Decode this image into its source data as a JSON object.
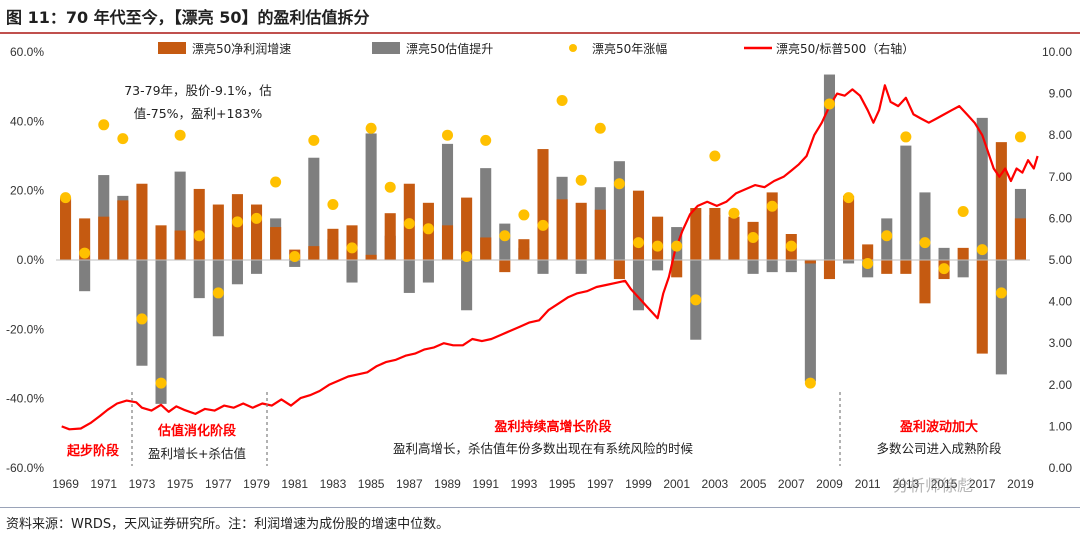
{
  "title": "图 11：70 年代至今，【漂亮 50】的盈利估值拆分",
  "source": "资料来源：WRDS，天风证券研究所。注：利润增速为成份股的增速中位数。",
  "watermark": "分析师徐彪",
  "colors": {
    "earnings": "#c55a11",
    "valuation": "#7f7f7f",
    "return_dot": "#ffc000",
    "ratio_line": "#ff0000",
    "annotation_red": "#ff0000",
    "title_rule": "#c0504d"
  },
  "annotations": {
    "note_1973_1979_l1": "73-79年，股价-9.1%，估",
    "note_1973_1979_l2": "值-75%，盈利+183%",
    "phase1_name": "起步阶段",
    "phase2_name": "估值消化阶段",
    "phase2_desc": "盈利增长+杀估值",
    "phase3_name": "盈利持续高增长阶段",
    "phase3_desc": "盈利高增长，杀估值年份多数出现在有系统风险的时候",
    "phase4_name": "盈利波动加大",
    "phase4_desc": "多数公司进入成熟阶段"
  },
  "chart_data": {
    "type": "bar",
    "title": "",
    "x_tick_labels": [
      "1969",
      "1971",
      "1973",
      "1975",
      "1977",
      "1979",
      "1981",
      "1983",
      "1985",
      "1987",
      "1989",
      "1991",
      "1993",
      "1995",
      "1997",
      "1999",
      "2001",
      "2003",
      "2005",
      "2007",
      "2009",
      "2011",
      "2013",
      "2015",
      "2017",
      "2019"
    ],
    "y_left": {
      "min": -0.6,
      "max": 0.6,
      "step": 0.2,
      "tick_labels": [
        "60.0%",
        "40.0%",
        "20.0%",
        "0.0%",
        "-20.0%",
        "-40.0%",
        "-60.0%"
      ]
    },
    "y_right": {
      "min": 0,
      "max": 10,
      "step": 1,
      "tick_labels": [
        "10.00",
        "9.00",
        "8.00",
        "7.00",
        "6.00",
        "5.00",
        "4.00",
        "3.00",
        "2.00",
        "1.00",
        "0.00"
      ]
    },
    "legend": {
      "placement": "top",
      "items": [
        "漂亮50净利润增速",
        "漂亮50估值提升",
        "漂亮50年涨幅",
        "漂亮50/标普500（右轴）"
      ]
    },
    "years": [
      1969,
      1970,
      1971,
      1972,
      1973,
      1974,
      1975,
      1976,
      1977,
      1978,
      1979,
      1980,
      1981,
      1982,
      1983,
      1984,
      1985,
      1986,
      1987,
      1988,
      1989,
      1990,
      1991,
      1992,
      1993,
      1994,
      1995,
      1996,
      1997,
      1998,
      1999,
      2000,
      2001,
      2002,
      2003,
      2004,
      2005,
      2006,
      2007,
      2008,
      2009,
      2010,
      2011,
      2012,
      2013,
      2014,
      2015,
      2016,
      2017,
      2018,
      2019
    ],
    "series": [
      {
        "name": "漂亮50净利润增速",
        "axis": "left",
        "values": [
          0.18,
          0.12,
          0.125,
          0.172,
          0.22,
          0.1,
          0.085,
          0.205,
          0.16,
          0.19,
          0.16,
          0.095,
          0.03,
          0.04,
          0.09,
          0.1,
          0.015,
          0.135,
          0.22,
          0.165,
          0.1,
          0.18,
          0.065,
          -0.035,
          0.06,
          0.32,
          0.175,
          0.165,
          0.145,
          -0.055,
          0.2,
          0.125,
          -0.05,
          0.15,
          0.15,
          0.125,
          0.11,
          0.195,
          0.075,
          -0.01,
          -0.055,
          0.185,
          0.045,
          -0.04,
          -0.04,
          -0.125,
          -0.055,
          0.035,
          -0.27,
          0.34,
          0.12
        ]
      },
      {
        "name": "漂亮50估值提升",
        "axis": "left",
        "values": [
          0,
          -0.09,
          0.245,
          0.185,
          -0.305,
          -0.415,
          0.255,
          -0.11,
          -0.22,
          -0.07,
          -0.04,
          0.12,
          -0.02,
          0.295,
          0.06,
          -0.065,
          0.365,
          0.07,
          -0.095,
          -0.065,
          0.335,
          -0.145,
          0.265,
          0.105,
          0.035,
          -0.04,
          0.24,
          -0.04,
          0.21,
          0.285,
          -0.145,
          -0.03,
          0.095,
          -0.23,
          0.13,
          0.03,
          -0.04,
          -0.035,
          -0.035,
          -0.35,
          0.535,
          -0.01,
          -0.05,
          0.12,
          0.33,
          0.195,
          0.035,
          -0.05,
          0.41,
          -0.33,
          0.205
        ]
      },
      {
        "name": "漂亮50年涨幅",
        "axis": "left",
        "values": [
          0.18,
          0.02,
          0.39,
          0.35,
          -0.17,
          -0.355,
          0.36,
          0.07,
          -0.095,
          0.11,
          0.12,
          0.225,
          0.01,
          0.345,
          0.16,
          0.035,
          0.38,
          0.21,
          0.105,
          0.09,
          0.36,
          0.01,
          0.345,
          0.07,
          0.13,
          0.1,
          0.46,
          0.23,
          0.38,
          0.22,
          0.05,
          0.04,
          0.04,
          -0.115,
          0.3,
          0.135,
          0.065,
          0.155,
          0.04,
          -0.355,
          0.45,
          0.18,
          -0.01,
          0.07,
          0.355,
          0.05,
          -0.025,
          0.14,
          0.03,
          -0.095,
          0.355
        ]
      },
      {
        "name": "漂亮50/标普500（右轴）",
        "axis": "right",
        "type": "line",
        "points": [
          [
            1968.8,
            1.0
          ],
          [
            1969.2,
            0.93
          ],
          [
            1969.8,
            0.95
          ],
          [
            1970.3,
            1.08
          ],
          [
            1970.8,
            1.25
          ],
          [
            1971.2,
            1.4
          ],
          [
            1971.7,
            1.55
          ],
          [
            1972.2,
            1.62
          ],
          [
            1972.7,
            1.58
          ],
          [
            1973.0,
            1.45
          ],
          [
            1973.5,
            1.38
          ],
          [
            1974.0,
            1.52
          ],
          [
            1974.4,
            1.35
          ],
          [
            1974.8,
            1.48
          ],
          [
            1975.2,
            1.4
          ],
          [
            1975.8,
            1.3
          ],
          [
            1976.3,
            1.42
          ],
          [
            1976.8,
            1.38
          ],
          [
            1977.3,
            1.5
          ],
          [
            1977.8,
            1.45
          ],
          [
            1978.3,
            1.55
          ],
          [
            1978.8,
            1.45
          ],
          [
            1979.3,
            1.55
          ],
          [
            1979.8,
            1.5
          ],
          [
            1980.3,
            1.65
          ],
          [
            1980.8,
            1.5
          ],
          [
            1981.3,
            1.68
          ],
          [
            1981.8,
            1.75
          ],
          [
            1982.3,
            1.85
          ],
          [
            1982.8,
            2.0
          ],
          [
            1983.3,
            2.1
          ],
          [
            1983.8,
            2.2
          ],
          [
            1984.3,
            2.25
          ],
          [
            1984.8,
            2.3
          ],
          [
            1985.3,
            2.45
          ],
          [
            1985.8,
            2.55
          ],
          [
            1986.3,
            2.6
          ],
          [
            1986.8,
            2.7
          ],
          [
            1987.3,
            2.75
          ],
          [
            1987.8,
            2.85
          ],
          [
            1988.3,
            2.9
          ],
          [
            1988.8,
            3.0
          ],
          [
            1989.3,
            2.95
          ],
          [
            1989.8,
            2.95
          ],
          [
            1990.3,
            3.1
          ],
          [
            1990.8,
            3.05
          ],
          [
            1991.3,
            3.1
          ],
          [
            1991.8,
            3.2
          ],
          [
            1992.3,
            3.3
          ],
          [
            1992.8,
            3.4
          ],
          [
            1993.3,
            3.5
          ],
          [
            1993.8,
            3.55
          ],
          [
            1994.3,
            3.8
          ],
          [
            1994.8,
            3.95
          ],
          [
            1995.3,
            4.1
          ],
          [
            1995.8,
            4.2
          ],
          [
            1996.3,
            4.25
          ],
          [
            1996.8,
            4.35
          ],
          [
            1997.3,
            4.4
          ],
          [
            1997.8,
            4.45
          ],
          [
            1998.3,
            4.5
          ],
          [
            1998.6,
            4.3
          ],
          [
            1999.0,
            4.1
          ],
          [
            1999.4,
            3.9
          ],
          [
            1999.8,
            3.7
          ],
          [
            2000.0,
            3.6
          ],
          [
            2000.3,
            4.2
          ],
          [
            2000.6,
            4.6
          ],
          [
            2000.9,
            5.2
          ],
          [
            2001.3,
            5.7
          ],
          [
            2001.7,
            6.1
          ],
          [
            2002.1,
            6.3
          ],
          [
            2002.6,
            6.4
          ],
          [
            2003.1,
            6.3
          ],
          [
            2003.6,
            6.4
          ],
          [
            2004.1,
            6.6
          ],
          [
            2004.6,
            6.7
          ],
          [
            2005.1,
            6.8
          ],
          [
            2005.6,
            6.75
          ],
          [
            2006.1,
            6.9
          ],
          [
            2006.6,
            7.0
          ],
          [
            2007.0,
            7.15
          ],
          [
            2007.4,
            7.3
          ],
          [
            2007.8,
            7.5
          ],
          [
            2008.2,
            8.0
          ],
          [
            2008.6,
            8.3
          ],
          [
            2009.0,
            8.7
          ],
          [
            2009.4,
            9.0
          ],
          [
            2009.8,
            8.95
          ],
          [
            2010.2,
            9.1
          ],
          [
            2010.6,
            8.95
          ],
          [
            2011.0,
            8.6
          ],
          [
            2011.3,
            8.3
          ],
          [
            2011.6,
            8.6
          ],
          [
            2011.9,
            9.2
          ],
          [
            2012.2,
            8.8
          ],
          [
            2012.6,
            8.7
          ],
          [
            2013.0,
            8.9
          ],
          [
            2013.4,
            8.5
          ],
          [
            2013.8,
            8.4
          ],
          [
            2014.2,
            8.3
          ],
          [
            2014.6,
            8.4
          ],
          [
            2015.0,
            8.5
          ],
          [
            2015.4,
            8.6
          ],
          [
            2015.8,
            8.7
          ],
          [
            2016.2,
            8.5
          ],
          [
            2016.6,
            8.3
          ],
          [
            2017.0,
            8.0
          ],
          [
            2017.3,
            7.6
          ],
          [
            2017.6,
            7.2
          ],
          [
            2017.9,
            7.0
          ],
          [
            2018.2,
            7.2
          ],
          [
            2018.5,
            6.9
          ],
          [
            2018.8,
            7.2
          ],
          [
            2019.1,
            7.1
          ],
          [
            2019.4,
            7.4
          ],
          [
            2019.7,
            7.2
          ],
          [
            2019.9,
            7.5
          ]
        ]
      }
    ]
  }
}
